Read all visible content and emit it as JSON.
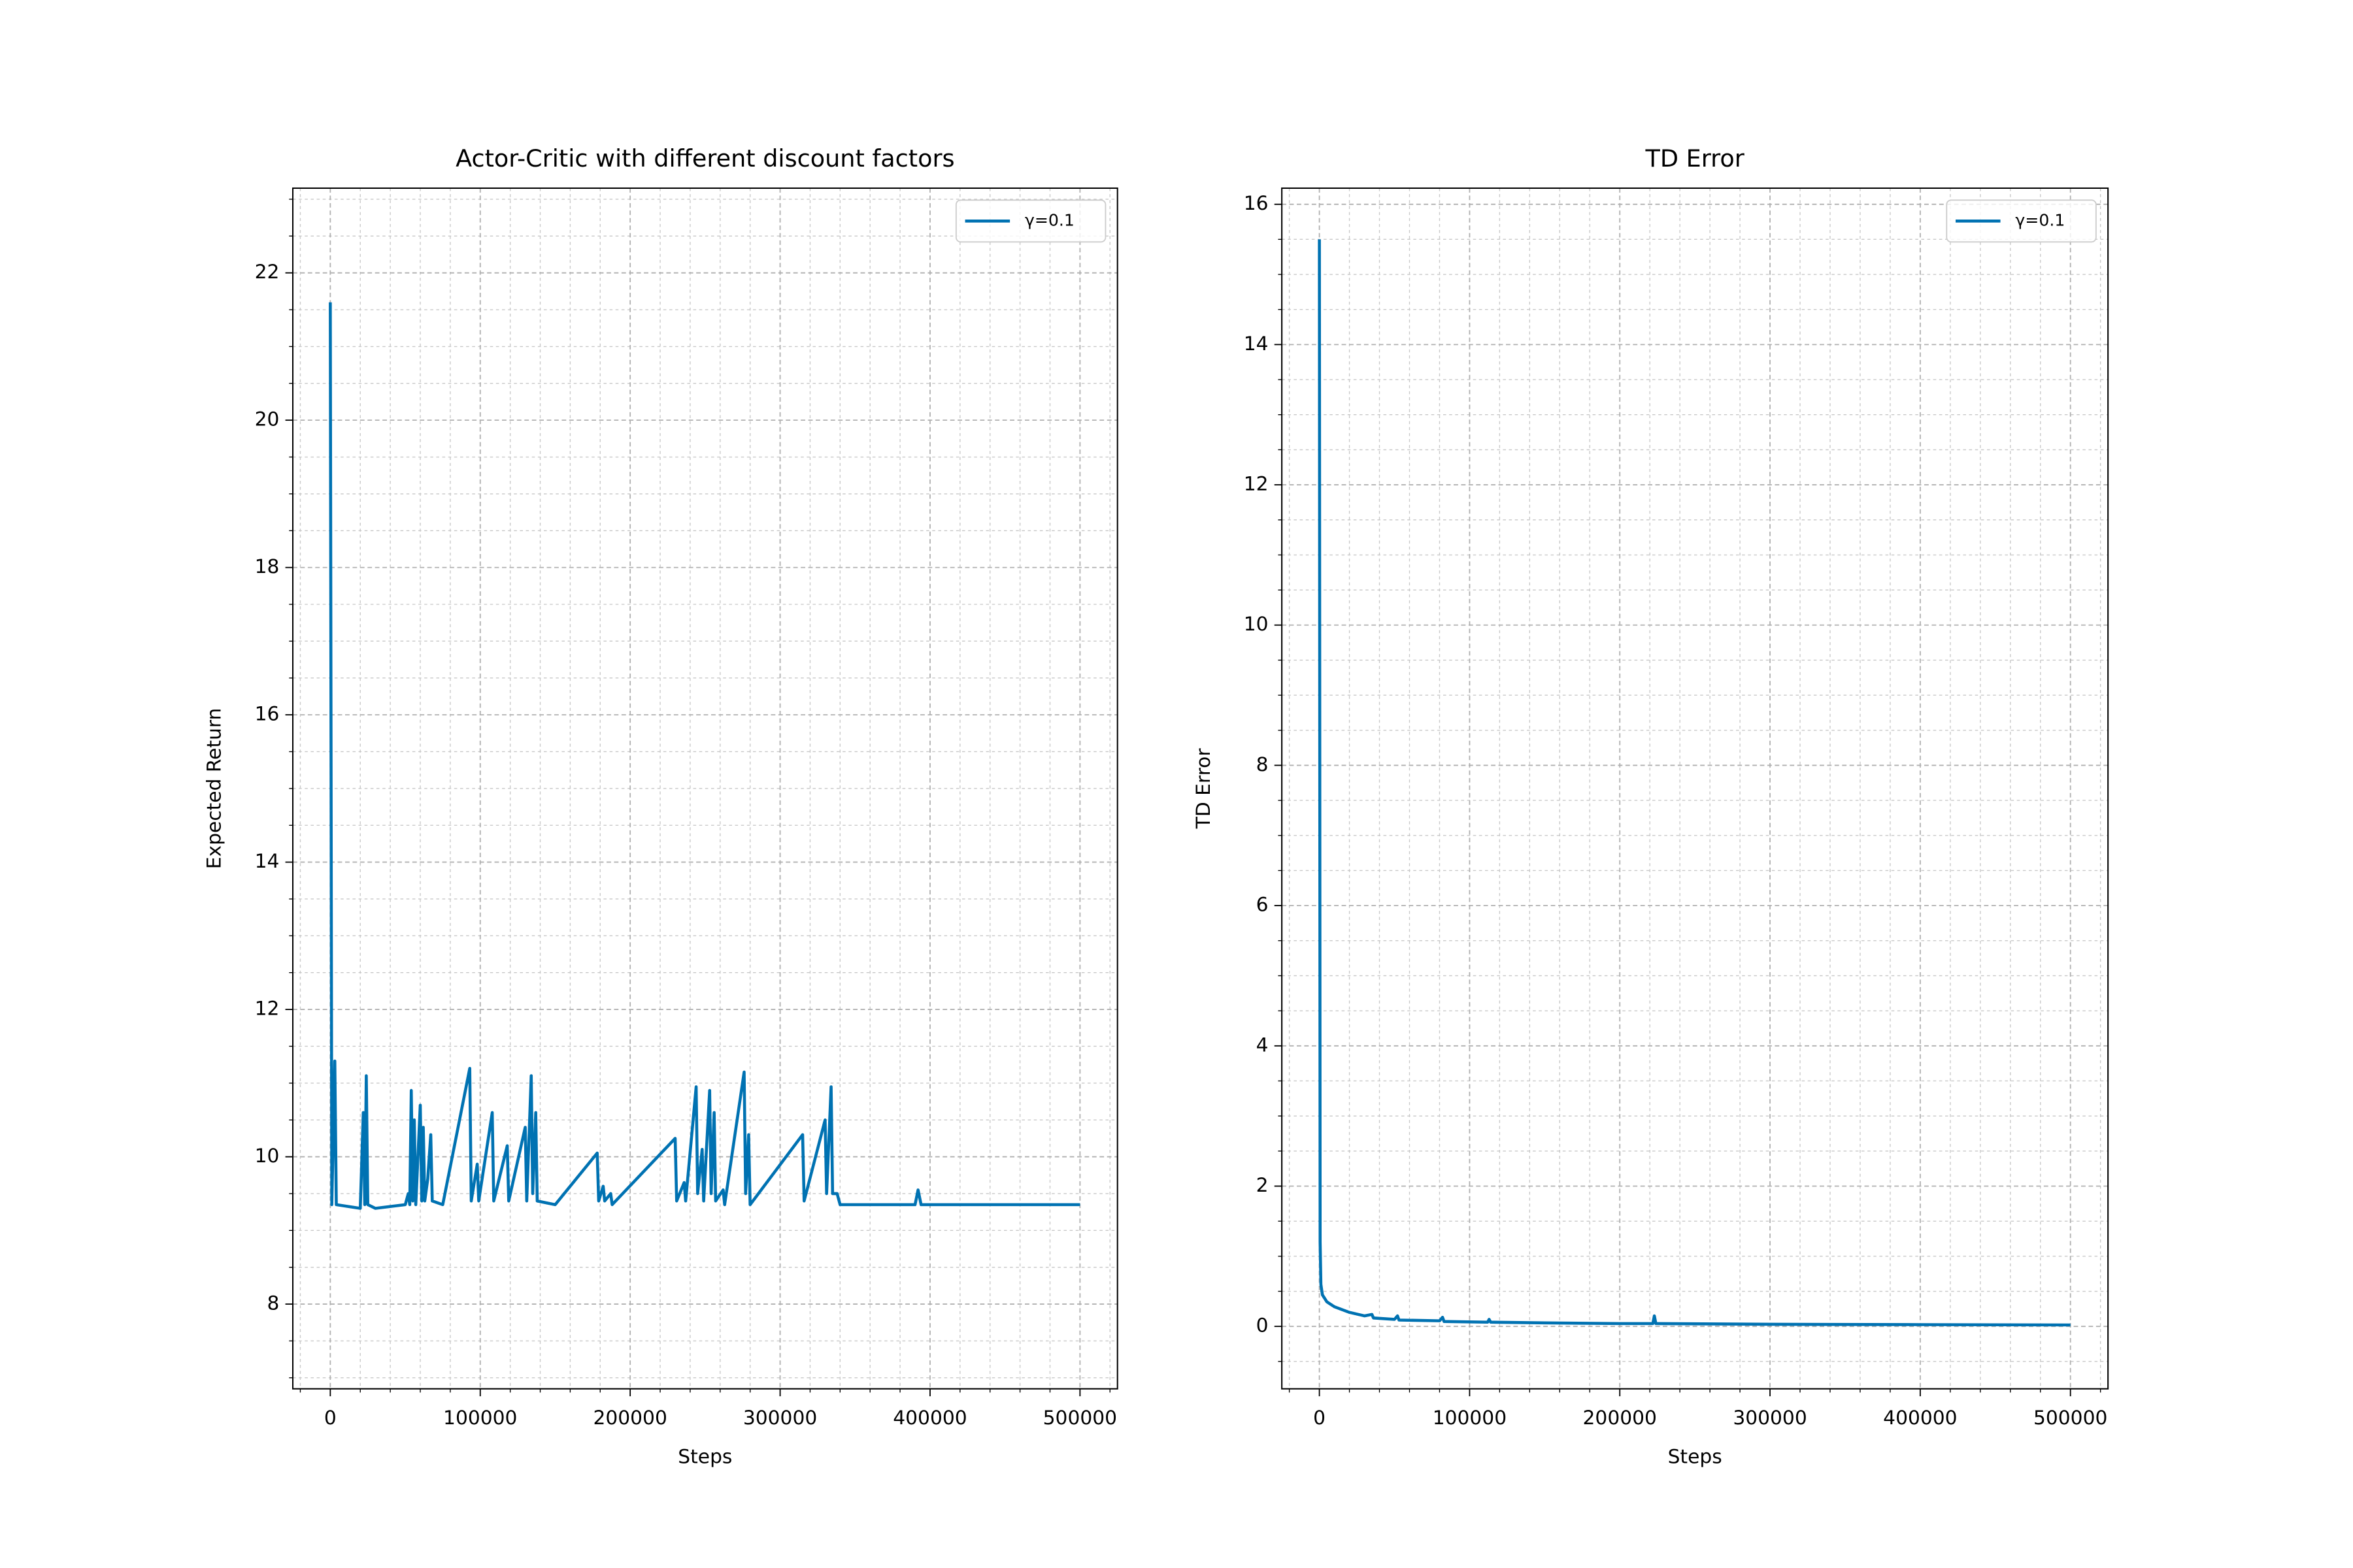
{
  "chart_data": [
    {
      "type": "line",
      "title": "Actor-Critic with different discount factors",
      "xlabel": "Steps",
      "ylabel": "Expected Return",
      "xlim": [
        -25000,
        525000
      ],
      "ylim": [
        6.85,
        23.15
      ],
      "xticks": [
        0,
        100000,
        200000,
        300000,
        400000,
        500000
      ],
      "yticks": [
        8,
        10,
        12,
        14,
        16,
        18,
        20,
        22
      ],
      "grid": true,
      "minor_grid": true,
      "legend": "upper right",
      "x": [
        0,
        1000,
        3000,
        4000,
        20000,
        22000,
        23000,
        24000,
        25000,
        30000,
        50000,
        52000,
        53000,
        54000,
        55000,
        56000,
        57000,
        60000,
        61000,
        62000,
        63000,
        65000,
        67000,
        68000,
        75000,
        93000,
        94000,
        98000,
        99000,
        108000,
        109000,
        118000,
        119000,
        130000,
        131000,
        134000,
        135000,
        137000,
        138000,
        150000,
        178000,
        179000,
        182000,
        183000,
        187000,
        188000,
        230000,
        231000,
        236000,
        237000,
        244000,
        245000,
        248000,
        249000,
        253000,
        254000,
        256000,
        257000,
        262000,
        263000,
        276000,
        277000,
        279000,
        280000,
        315000,
        316000,
        330000,
        331000,
        334000,
        335000,
        338000,
        340000,
        390000,
        392000,
        394000,
        500000
      ],
      "series": [
        {
          "name": "γ=0.1",
          "color": "#0072B2",
          "values": [
            21.6,
            9.35,
            11.3,
            9.35,
            9.3,
            10.6,
            9.35,
            11.1,
            9.35,
            9.3,
            9.35,
            9.5,
            9.35,
            10.9,
            9.4,
            10.5,
            9.35,
            10.7,
            9.4,
            10.4,
            9.4,
            9.7,
            10.3,
            9.4,
            9.35,
            11.2,
            9.4,
            9.9,
            9.4,
            10.6,
            9.4,
            10.15,
            9.4,
            10.4,
            9.4,
            11.1,
            9.5,
            10.6,
            9.4,
            9.35,
            10.05,
            9.4,
            9.6,
            9.4,
            9.5,
            9.35,
            10.25,
            9.4,
            9.65,
            9.4,
            10.95,
            9.5,
            10.1,
            9.4,
            10.9,
            9.5,
            10.6,
            9.4,
            9.55,
            9.35,
            11.15,
            9.5,
            10.3,
            9.35,
            10.3,
            9.4,
            10.5,
            9.5,
            10.95,
            9.5,
            9.5,
            9.35,
            9.35,
            9.55,
            9.35,
            9.35
          ]
        }
      ]
    },
    {
      "type": "line",
      "title": "TD Error",
      "xlabel": "Steps",
      "ylabel": "TD Error",
      "xlim": [
        -25000,
        525000
      ],
      "ylim": [
        -0.89,
        16.23
      ],
      "xticks": [
        0,
        100000,
        200000,
        300000,
        400000,
        500000
      ],
      "yticks": [
        0,
        2,
        4,
        6,
        8,
        10,
        12,
        14,
        16
      ],
      "grid": true,
      "minor_grid": true,
      "legend": "upper right",
      "x": [
        0,
        500,
        1000,
        2000,
        5000,
        10000,
        20000,
        30000,
        35000,
        36000,
        50000,
        52000,
        53000,
        80000,
        82000,
        83000,
        112000,
        113000,
        114000,
        150000,
        200000,
        222000,
        223000,
        224000,
        300000,
        400000,
        500000
      ],
      "series": [
        {
          "name": "γ=0.1",
          "color": "#0072B2",
          "values": [
            15.5,
            1.2,
            0.6,
            0.45,
            0.35,
            0.28,
            0.2,
            0.15,
            0.17,
            0.12,
            0.1,
            0.15,
            0.09,
            0.08,
            0.13,
            0.07,
            0.06,
            0.1,
            0.06,
            0.05,
            0.04,
            0.04,
            0.15,
            0.04,
            0.03,
            0.025,
            0.02
          ]
        }
      ]
    }
  ]
}
